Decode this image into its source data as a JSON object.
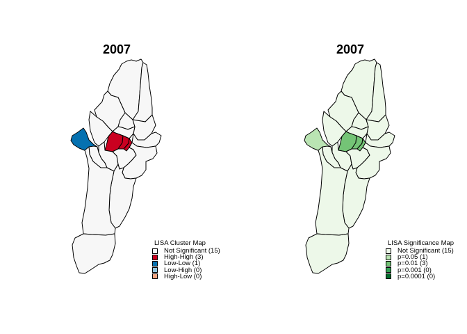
{
  "colors": {
    "outline": "#000000",
    "cluster": {
      "not_significant": "#f7f7f7",
      "high_high": "#ca0020",
      "low_low": "#0571b0",
      "low_high": "#92c5de",
      "high_low": "#f4a582"
    },
    "significance": {
      "not_significant": "#edf8e9",
      "p05": "#bae4b3",
      "p01": "#74c476",
      "p001": "#31a354",
      "p0001": "#006d2c"
    }
  },
  "maps": [
    {
      "title": "2007",
      "legend": {
        "title": "LISA Cluster Map",
        "items": [
          {
            "label": "Not Significant  (15)",
            "color": "#f7f7f7"
          },
          {
            "label": "High-High  (3)",
            "color": "#ca0020"
          },
          {
            "label": "Low-Low  (1)",
            "color": "#0571b0"
          },
          {
            "label": "Low-High  (0)",
            "color": "#92c5de"
          },
          {
            "label": "High-Low  (0)",
            "color": "#f4a582"
          }
        ]
      },
      "regions": [
        {
          "region": "north",
          "class": "not_significant"
        },
        {
          "region": "northeast-strip",
          "class": "not_significant"
        },
        {
          "region": "northwest",
          "class": "not_significant"
        },
        {
          "region": "north-center",
          "class": "not_significant"
        },
        {
          "region": "east-upper",
          "class": "not_significant"
        },
        {
          "region": "center-west",
          "class": "not_significant"
        },
        {
          "region": "center-north",
          "class": "not_significant"
        },
        {
          "region": "west",
          "class": "low_low"
        },
        {
          "region": "center-1",
          "class": "high_high"
        },
        {
          "region": "center-2",
          "class": "high_high"
        },
        {
          "region": "center-3",
          "class": "high_high"
        },
        {
          "region": "east-mid",
          "class": "not_significant"
        },
        {
          "region": "southwest-1",
          "class": "not_significant"
        },
        {
          "region": "southwest-2",
          "class": "not_significant"
        },
        {
          "region": "south-center",
          "class": "not_significant"
        },
        {
          "region": "southeast",
          "class": "not_significant"
        },
        {
          "region": "south-east-lower",
          "class": "not_significant"
        },
        {
          "region": "south-mid",
          "class": "not_significant"
        },
        {
          "region": "far-south",
          "class": "not_significant"
        }
      ]
    },
    {
      "title": "2007",
      "legend": {
        "title": "LISA Significance Map",
        "items": [
          {
            "label": "Not Significant  (15)",
            "color": "#edf8e9"
          },
          {
            "label": "p=0.05  (1)",
            "color": "#bae4b3"
          },
          {
            "label": "p=0.01 (3)",
            "color": "#74c476"
          },
          {
            "label": "p=0.001  (0)",
            "color": "#31a354"
          },
          {
            "label": "p=0.0001  (0)",
            "color": "#006d2c"
          }
        ]
      },
      "regions": [
        {
          "region": "north",
          "class": "not_significant"
        },
        {
          "region": "northeast-strip",
          "class": "not_significant"
        },
        {
          "region": "northwest",
          "class": "not_significant"
        },
        {
          "region": "north-center",
          "class": "not_significant"
        },
        {
          "region": "east-upper",
          "class": "not_significant"
        },
        {
          "region": "center-west",
          "class": "not_significant"
        },
        {
          "region": "center-north",
          "class": "not_significant"
        },
        {
          "region": "west",
          "class": "p05"
        },
        {
          "region": "center-1",
          "class": "p01"
        },
        {
          "region": "center-2",
          "class": "p01"
        },
        {
          "region": "center-3",
          "class": "p01"
        },
        {
          "region": "east-mid",
          "class": "not_significant"
        },
        {
          "region": "southwest-1",
          "class": "not_significant"
        },
        {
          "region": "southwest-2",
          "class": "not_significant"
        },
        {
          "region": "south-center",
          "class": "not_significant"
        },
        {
          "region": "southeast",
          "class": "not_significant"
        },
        {
          "region": "south-east-lower",
          "class": "not_significant"
        },
        {
          "region": "south-mid",
          "class": "not_significant"
        },
        {
          "region": "far-south",
          "class": "not_significant"
        }
      ]
    }
  ]
}
